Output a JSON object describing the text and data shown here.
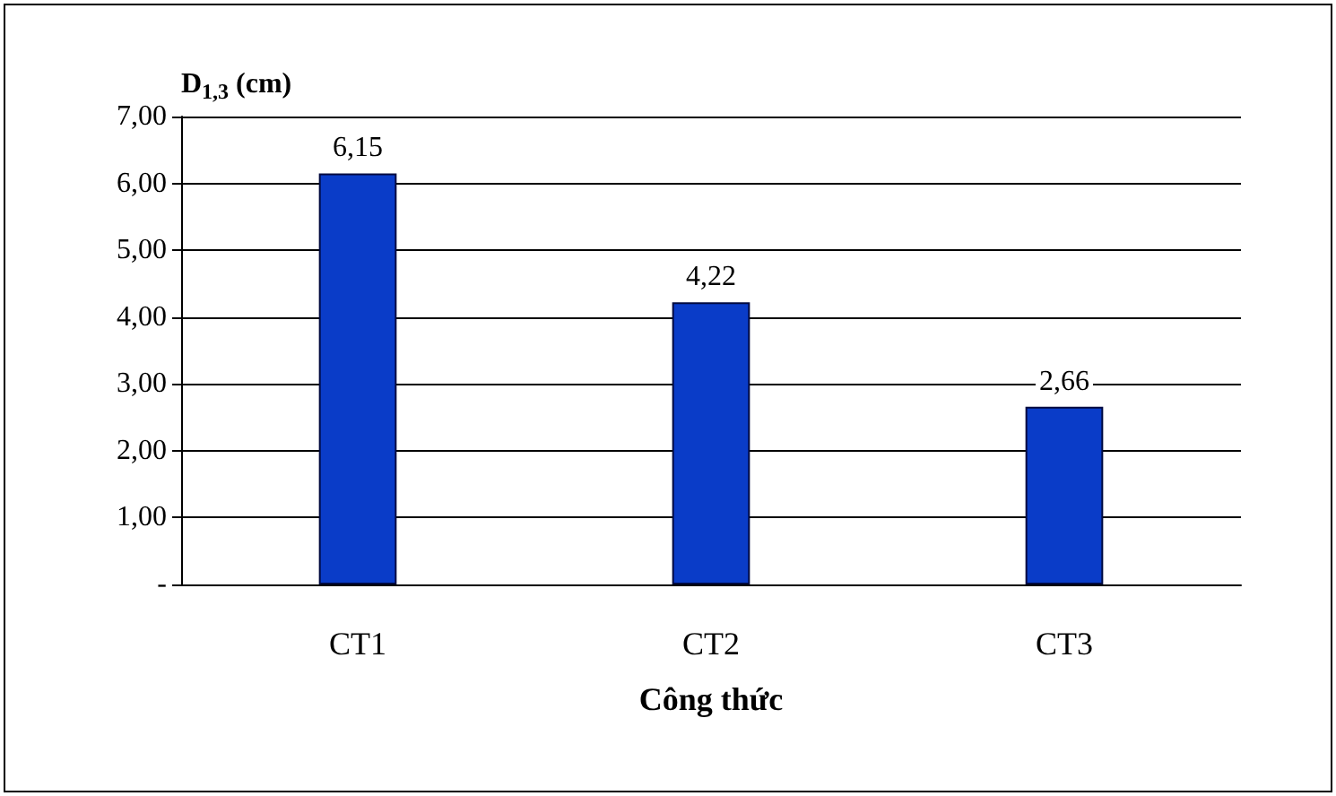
{
  "chart_data": {
    "type": "bar",
    "ylabel": "D$_{1,3}$ (cm)",
    "xlabel": "Công thức",
    "categories": [
      "CT1",
      "CT2",
      "CT3"
    ],
    "values": [
      6.15,
      4.22,
      2.66
    ],
    "color": "#0a3cc8",
    "value_labels": [
      "6,15",
      "4,22",
      "2,66"
    ],
    "ylim": [
      0,
      7
    ],
    "yticks": [
      {
        "value": 0,
        "label": "-"
      },
      {
        "value": 1,
        "label": "1,00"
      },
      {
        "value": 2,
        "label": "2,00"
      },
      {
        "value": 3,
        "label": "3,00"
      },
      {
        "value": 4,
        "label": "4,00"
      },
      {
        "value": 5,
        "label": "5,00"
      },
      {
        "value": 6,
        "label": "6,00"
      },
      {
        "value": 7,
        "label": "7,00"
      }
    ],
    "grid": true
  }
}
